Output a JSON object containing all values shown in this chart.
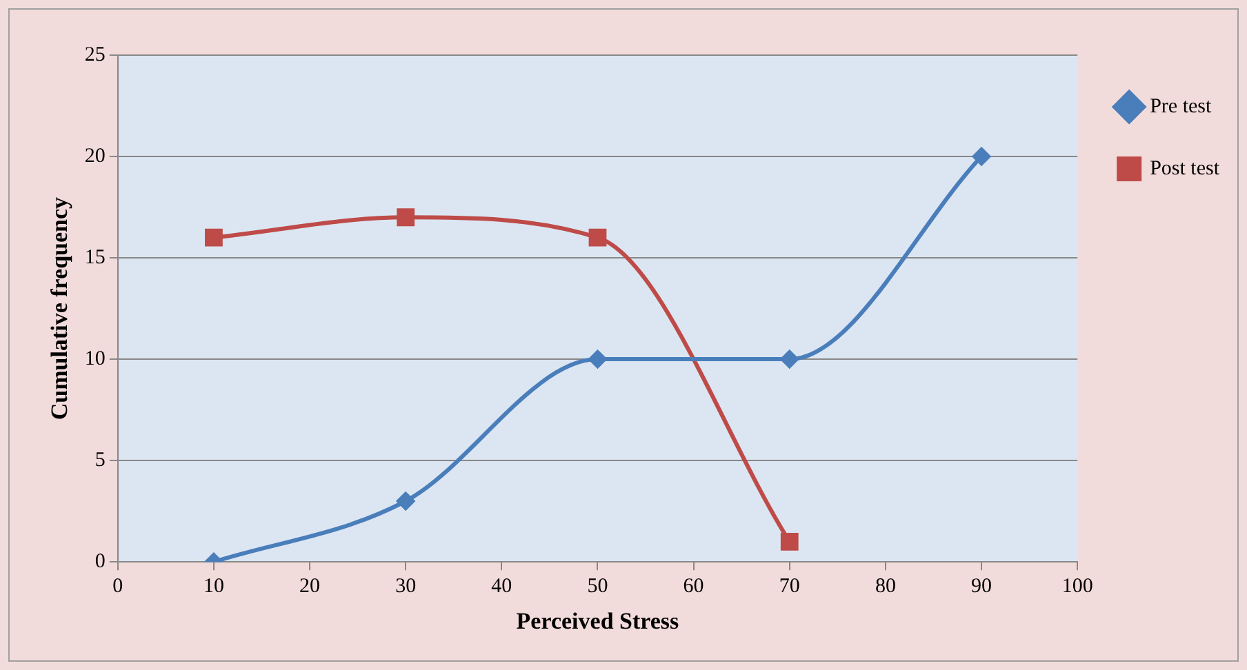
{
  "chart_data": {
    "type": "line",
    "xlabel": "Perceived Stress",
    "ylabel": "Cumulative frequency",
    "xlim": [
      0,
      100
    ],
    "xticks": [
      0,
      10,
      20,
      30,
      40,
      50,
      60,
      70,
      80,
      90,
      100
    ],
    "ylim": [
      0,
      25
    ],
    "yticks": [
      0,
      5,
      10,
      15,
      20,
      25
    ],
    "grid": "y",
    "legend": "top right",
    "series": [
      {
        "name": "Pre test",
        "color": "#4a7ebb",
        "marker": "diamond",
        "x": [
          10,
          30,
          50,
          70,
          90
        ],
        "values": [
          0,
          3,
          10,
          10,
          20
        ]
      },
      {
        "name": "Post test",
        "color": "#be4b48",
        "marker": "square",
        "x": [
          10,
          30,
          50,
          70
        ],
        "values": [
          16,
          17,
          16,
          1
        ]
      }
    ]
  }
}
